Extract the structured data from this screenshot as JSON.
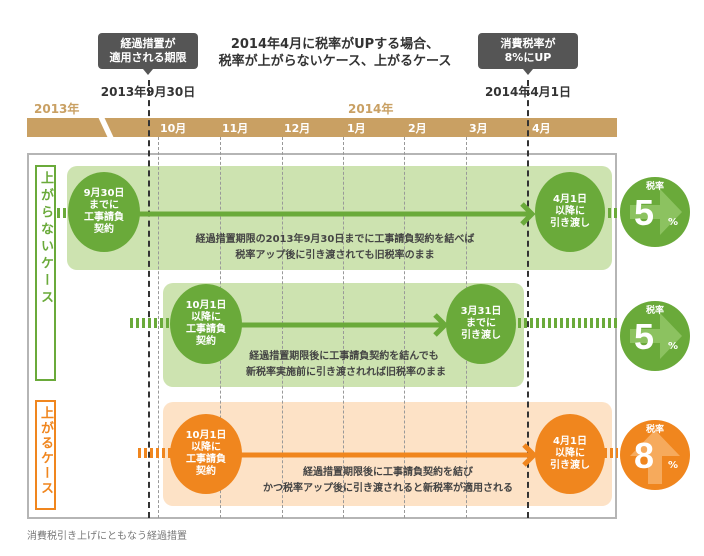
{
  "title": [
    "2014年4月に税率がUPする場合、",
    "税率が上がらないケース、上がるケース"
  ],
  "callouts": {
    "left": {
      "lines": [
        "経過措置が",
        "適用される期限"
      ],
      "date": "2013年9月30日"
    },
    "right": {
      "lines": [
        "消費税率が",
        "8%にUP"
      ],
      "date": "2014年4月1日"
    }
  },
  "timeline": {
    "years": [
      "2013年",
      "2014年"
    ],
    "months": [
      "10月",
      "11月",
      "12月",
      "1月",
      "2月",
      "3月",
      "4月"
    ]
  },
  "labels": {
    "no_rise": "上がらないケース",
    "rise": "上がるケース"
  },
  "rows": [
    {
      "start": [
        "9月30日",
        "までに",
        "工事請負",
        "契約"
      ],
      "end": [
        "4月1日",
        "以降に",
        "引き渡し"
      ],
      "desc": [
        "経過措置期限の2013年9月30日までに工事請負契約を結べば",
        "税率アップ後に引き渡されても旧税率のまま"
      ],
      "result": {
        "label": "税率",
        "value": "5",
        "unit": "%"
      }
    },
    {
      "start": [
        "10月1日",
        "以降に",
        "工事請負",
        "契約"
      ],
      "end": [
        "3月31日",
        "までに",
        "引き渡し"
      ],
      "desc": [
        "経過措置期限後に工事請負契約を結んでも",
        "新税率実施前に引き渡されれば旧税率のまま"
      ],
      "result": {
        "label": "税率",
        "value": "5",
        "unit": "%"
      }
    },
    {
      "start": [
        "10月1日",
        "以降に",
        "工事請負",
        "契約"
      ],
      "end": [
        "4月1日",
        "以降に",
        "引き渡し"
      ],
      "desc": [
        "経過措置期限後に工事請負契約を結び",
        "かつ税率アップ後に引き渡されると新税率が適用される"
      ],
      "result": {
        "label": "税率",
        "value": "8",
        "unit": "%"
      }
    }
  ],
  "caption": "消費税引き上げにともなう経過措置",
  "colors": {
    "gold": "#c9a063",
    "green": "#6aaa3a",
    "green_bg": "#cde3b0",
    "orange": "#f0861e",
    "orange_bg": "#fde2c6",
    "callout": "#555555"
  }
}
